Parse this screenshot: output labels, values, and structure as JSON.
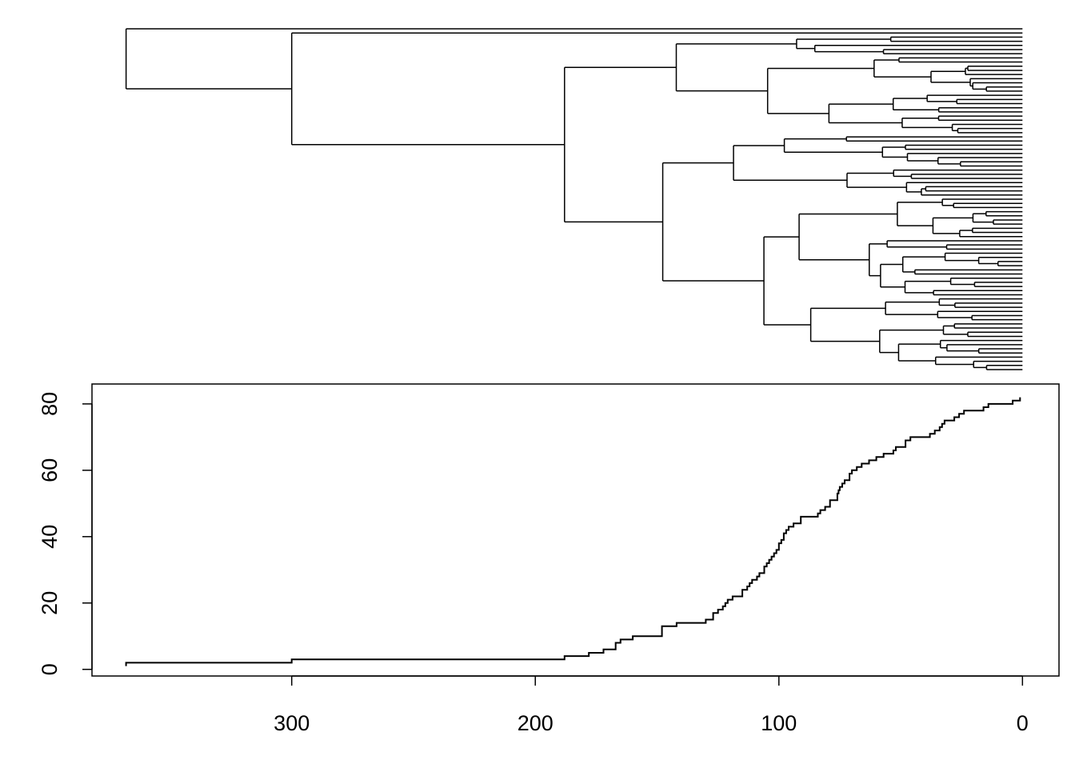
{
  "chart_data": [
    {
      "type": "tree",
      "n_tips": 83,
      "root_age": 368,
      "axis": "shared with lineage-through-time plot (time before present)",
      "node_ages_observed": [
        368,
        300,
        188,
        178,
        172,
        167,
        165,
        160,
        158,
        148,
        142,
        141,
        138,
        130,
        127,
        125,
        123,
        122,
        121,
        119,
        117,
        115,
        113,
        112,
        111,
        108,
        106,
        105,
        103,
        101,
        100,
        99,
        97,
        96,
        94,
        92,
        91,
        87,
        83,
        79,
        76,
        75,
        73,
        71,
        70,
        68,
        63,
        60,
        57,
        53,
        52,
        48,
        46,
        38,
        36,
        34,
        33,
        32,
        28,
        24,
        16,
        11,
        2,
        1
      ]
    },
    {
      "type": "line",
      "subtype": "step",
      "title": "",
      "xlabel": "",
      "ylabel": "",
      "x_axis": {
        "reversed": true,
        "ticks": [
          300,
          200,
          100,
          0
        ],
        "xlim": [
          382,
          -15
        ]
      },
      "y_axis": {
        "ticks": [
          0,
          20,
          40,
          60,
          80
        ],
        "ylim": [
          -2,
          86
        ]
      },
      "grid": false,
      "series": [
        {
          "x": [
            368,
            300,
            188,
            178,
            172,
            167,
            165,
            160,
            148,
            142,
            141,
            138,
            130,
            127,
            125,
            123,
            122,
            121,
            119,
            117,
            115,
            113,
            112,
            111,
            109,
            108,
            106,
            105,
            104,
            103,
            102,
            101,
            100,
            99,
            98,
            97,
            96,
            94,
            91,
            88,
            86,
            84,
            83,
            81,
            79,
            77,
            76,
            75.5,
            75,
            74,
            73,
            71,
            70,
            68,
            66,
            63,
            60,
            57,
            53,
            52,
            48,
            46,
            38,
            36,
            34,
            33,
            32,
            28,
            26,
            24,
            20,
            16,
            15,
            14,
            11,
            4,
            2,
            1
          ],
          "y": [
            2,
            3,
            4,
            5,
            6,
            8,
            9,
            10,
            13,
            14,
            14,
            14,
            15,
            17,
            18,
            19,
            20,
            21,
            22,
            22,
            24,
            25,
            26,
            27,
            28,
            29,
            31,
            32,
            33,
            34,
            35,
            36,
            38,
            39,
            41,
            42,
            43,
            44,
            46,
            46,
            46,
            47,
            48,
            49,
            51,
            51,
            53,
            54,
            55,
            56,
            57,
            59,
            60,
            61,
            62,
            63,
            64,
            65,
            66,
            67,
            69,
            70,
            71,
            72,
            73,
            74,
            75,
            76,
            77,
            78,
            78,
            79,
            79,
            80,
            80,
            81,
            81,
            82
          ]
        }
      ]
    }
  ],
  "axes": {
    "x_tick_labels": [
      "300",
      "200",
      "100",
      "0"
    ],
    "y_tick_labels": [
      "0",
      "20",
      "40",
      "60",
      "80"
    ]
  }
}
